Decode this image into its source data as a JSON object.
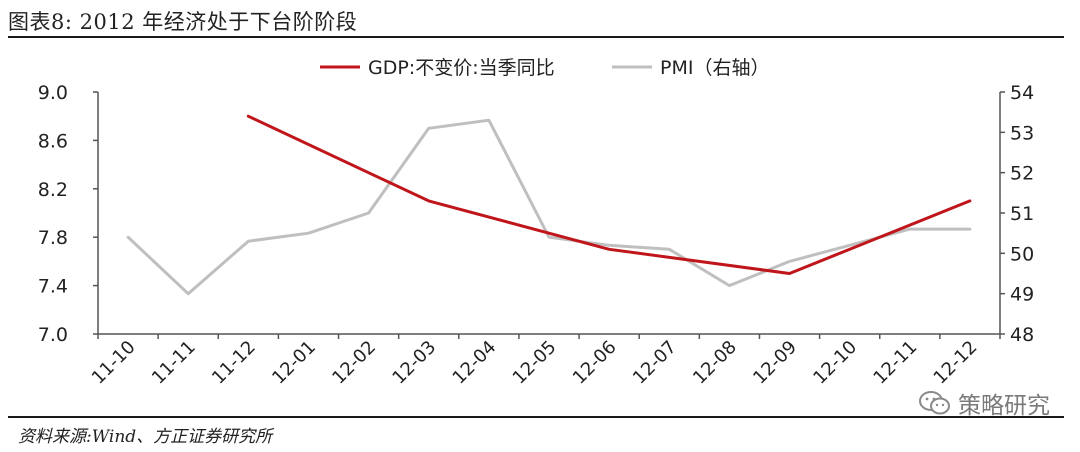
{
  "figure": {
    "title": "图表8:  2012 年经济处于下台阶阶段",
    "source": "资料来源:Wind、方正证券研究所",
    "watermark": "策略研究",
    "watermark_icon": "wechat-icon"
  },
  "chart_data": {
    "type": "line",
    "categories": [
      "11-10",
      "11-11",
      "11-12",
      "12-01",
      "12-02",
      "12-03",
      "12-04",
      "12-05",
      "12-06",
      "12-07",
      "12-08",
      "12-09",
      "12-10",
      "12-11",
      "12-12"
    ],
    "series": [
      {
        "name": "GDP:不变价:当季同比",
        "axis": "left",
        "color": "#c0161b",
        "values": [
          null,
          null,
          8.8,
          null,
          null,
          8.1,
          null,
          null,
          7.7,
          null,
          null,
          7.5,
          null,
          null,
          8.1
        ]
      },
      {
        "name": "PMI（右轴）",
        "axis": "right",
        "color": "#bfbfbf",
        "values": [
          50.4,
          49.0,
          50.3,
          50.5,
          51.0,
          53.1,
          53.3,
          50.4,
          50.2,
          50.1,
          49.2,
          49.8,
          50.2,
          50.6,
          50.6
        ]
      }
    ],
    "y_left": {
      "ylim": [
        7.0,
        9.0
      ],
      "ticks": [
        "7.0",
        "7.4",
        "7.8",
        "8.2",
        "8.6",
        "9.0"
      ]
    },
    "y_right": {
      "ylim": [
        48,
        54
      ],
      "ticks": [
        "48",
        "49",
        "50",
        "51",
        "52",
        "53",
        "54"
      ]
    },
    "legend_position": "top-center",
    "grid": false
  }
}
